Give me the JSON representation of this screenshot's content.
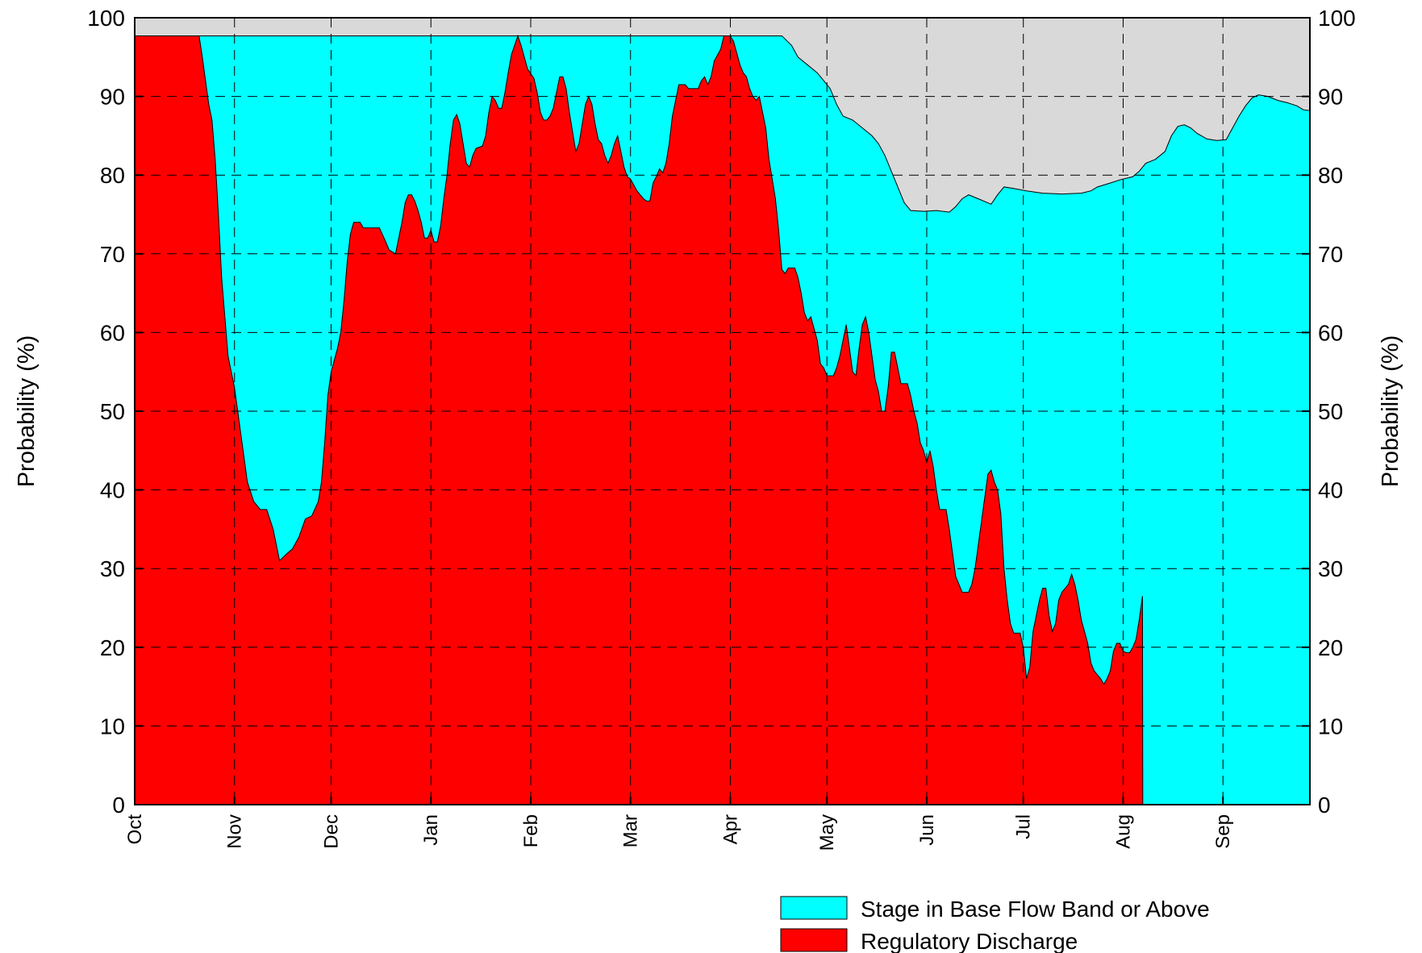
{
  "chart_data": {
    "type": "area",
    "title": "",
    "ylabel_left": "Probability (%)",
    "ylabel_right": "Probability (%)",
    "xlabel": "",
    "ylim": [
      0,
      100
    ],
    "yticks": [
      0,
      10,
      20,
      30,
      40,
      50,
      60,
      70,
      80,
      90,
      100
    ],
    "xlim": [
      0,
      365
    ],
    "months": [
      {
        "label": "Oct",
        "day": 0
      },
      {
        "label": "Nov",
        "day": 31
      },
      {
        "label": "Dec",
        "day": 61
      },
      {
        "label": "Jan",
        "day": 92
      },
      {
        "label": "Feb",
        "day": 123
      },
      {
        "label": "Mar",
        "day": 154
      },
      {
        "label": "Apr",
        "day": 185
      },
      {
        "label": "May",
        "day": 215
      },
      {
        "label": "Jun",
        "day": 246
      },
      {
        "label": "Jul",
        "day": 276
      },
      {
        "label": "Aug",
        "day": 307
      },
      {
        "label": "Sep",
        "day": 338
      }
    ],
    "grid": true,
    "legend_position": "bottom-right",
    "background_color": "#d9d9d9",
    "series": [
      {
        "name": "Stage in Base Flow Band or Above",
        "color": "#00ffff",
        "points": [
          [
            0,
            97.7
          ],
          [
            20,
            97.7
          ],
          [
            201,
            97.7
          ],
          [
            204,
            96.5
          ],
          [
            206,
            95
          ],
          [
            209,
            94
          ],
          [
            212,
            93
          ],
          [
            214,
            92
          ],
          [
            216,
            91
          ],
          [
            218,
            89
          ],
          [
            220,
            87.5
          ],
          [
            223,
            87
          ],
          [
            226,
            86
          ],
          [
            229,
            85
          ],
          [
            231,
            84
          ],
          [
            233,
            82.5
          ],
          [
            235,
            80.5
          ],
          [
            237,
            78.5
          ],
          [
            239,
            76.5
          ],
          [
            241,
            75.5
          ],
          [
            245,
            75.4
          ],
          [
            249,
            75.5
          ],
          [
            253,
            75.3
          ],
          [
            255,
            76
          ],
          [
            257,
            77
          ],
          [
            259,
            77.5
          ],
          [
            262,
            77
          ],
          [
            266,
            76.3
          ],
          [
            268,
            77.5
          ],
          [
            270,
            78.5
          ],
          [
            273,
            78.3
          ],
          [
            277,
            78
          ],
          [
            282,
            77.7
          ],
          [
            288,
            77.6
          ],
          [
            294,
            77.7
          ],
          [
            297,
            78
          ],
          [
            299,
            78.5
          ],
          [
            303,
            79
          ],
          [
            306,
            79.4
          ],
          [
            310,
            79.8
          ],
          [
            312,
            80.5
          ],
          [
            314,
            81.5
          ],
          [
            317,
            82
          ],
          [
            320,
            83
          ],
          [
            322,
            85
          ],
          [
            324,
            86.2
          ],
          [
            326,
            86.4
          ],
          [
            328,
            86
          ],
          [
            330,
            85.3
          ],
          [
            333,
            84.6
          ],
          [
            336,
            84.4
          ],
          [
            339,
            84.5
          ],
          [
            341,
            86
          ],
          [
            343,
            87.5
          ],
          [
            345,
            88.8
          ],
          [
            347,
            89.8
          ],
          [
            349,
            90.2
          ],
          [
            352,
            90
          ],
          [
            355,
            89.5
          ],
          [
            358,
            89.2
          ],
          [
            361,
            88.8
          ],
          [
            363,
            88.3
          ],
          [
            365,
            88.2
          ]
        ]
      },
      {
        "name": "Regulatory Discharge",
        "color": "#ff0000",
        "points": [
          [
            0,
            97.7
          ],
          [
            20,
            97.7
          ],
          [
            21,
            95
          ],
          [
            23,
            89
          ],
          [
            24,
            87
          ],
          [
            25,
            82
          ],
          [
            26,
            75
          ],
          [
            27,
            67
          ],
          [
            29,
            57
          ],
          [
            31,
            53
          ],
          [
            33,
            47
          ],
          [
            35,
            41
          ],
          [
            37,
            38.5
          ],
          [
            39,
            37.5
          ],
          [
            41,
            37.5
          ],
          [
            43,
            35
          ],
          [
            45,
            31
          ],
          [
            47,
            31.8
          ],
          [
            49,
            32.5
          ],
          [
            51,
            34
          ],
          [
            53,
            36.3
          ],
          [
            55,
            36.7
          ],
          [
            57,
            38.5
          ],
          [
            58,
            41
          ],
          [
            59,
            46
          ],
          [
            60,
            52
          ],
          [
            61,
            55
          ],
          [
            63,
            58
          ],
          [
            64,
            60
          ],
          [
            65,
            64
          ],
          [
            66,
            69
          ],
          [
            67,
            72.5
          ],
          [
            68,
            74
          ],
          [
            70,
            74
          ],
          [
            71,
            73.3
          ],
          [
            76,
            73.3
          ],
          [
            78,
            71.5
          ],
          [
            79,
            70.5
          ],
          [
            81,
            70
          ],
          [
            82,
            72
          ],
          [
            83,
            74
          ],
          [
            84,
            76.5
          ],
          [
            85,
            77.5
          ],
          [
            86,
            77.5
          ],
          [
            87,
            76.7
          ],
          [
            88,
            75.5
          ],
          [
            89,
            74
          ],
          [
            90,
            72
          ],
          [
            91,
            72
          ],
          [
            92,
            73
          ],
          [
            93,
            71.5
          ],
          [
            94,
            71.5
          ],
          [
            95,
            73.5
          ],
          [
            96,
            77
          ],
          [
            97,
            80
          ],
          [
            98,
            84
          ],
          [
            99,
            87
          ],
          [
            100,
            87.7
          ],
          [
            101,
            86.5
          ],
          [
            102,
            84
          ],
          [
            103,
            81.5
          ],
          [
            104,
            81
          ],
          [
            105,
            82.5
          ],
          [
            106,
            83.4
          ],
          [
            108,
            83.7
          ],
          [
            109,
            85
          ],
          [
            110,
            88
          ],
          [
            111,
            90
          ],
          [
            112,
            89.5
          ],
          [
            113,
            88.5
          ],
          [
            114,
            88.5
          ],
          [
            115,
            90.5
          ],
          [
            116,
            93
          ],
          [
            117,
            95.3
          ],
          [
            118,
            96.5
          ],
          [
            119,
            97.7
          ],
          [
            120,
            96.5
          ],
          [
            121,
            95
          ],
          [
            122,
            93.5
          ],
          [
            124,
            92.3
          ],
          [
            125,
            90.5
          ],
          [
            126,
            88
          ],
          [
            127,
            87
          ],
          [
            128,
            87
          ],
          [
            129,
            87.5
          ],
          [
            130,
            88.5
          ],
          [
            131,
            90.5
          ],
          [
            132,
            92.5
          ],
          [
            133,
            92.5
          ],
          [
            134,
            91
          ],
          [
            135,
            88
          ],
          [
            136,
            85.5
          ],
          [
            137,
            83
          ],
          [
            138,
            84
          ],
          [
            139,
            86.5
          ],
          [
            140,
            89
          ],
          [
            141,
            90
          ],
          [
            142,
            89
          ],
          [
            143,
            86.5
          ],
          [
            144,
            84.5
          ],
          [
            145,
            84
          ],
          [
            146,
            82.5
          ],
          [
            147,
            81.5
          ],
          [
            148,
            82.5
          ],
          [
            149,
            84
          ],
          [
            150,
            85
          ],
          [
            151,
            83
          ],
          [
            152,
            81
          ],
          [
            153,
            79.8
          ],
          [
            154,
            79.5
          ],
          [
            156,
            78
          ],
          [
            158,
            77
          ],
          [
            159,
            76.7
          ],
          [
            160,
            76.7
          ],
          [
            161,
            79
          ],
          [
            162,
            79.8
          ],
          [
            163,
            80.8
          ],
          [
            164,
            80.3
          ],
          [
            165,
            81.5
          ],
          [
            166,
            84
          ],
          [
            167,
            87.5
          ],
          [
            168,
            89.5
          ],
          [
            169,
            91.5
          ],
          [
            171,
            91.5
          ],
          [
            172,
            91
          ],
          [
            175,
            91
          ],
          [
            176,
            92
          ],
          [
            177,
            92.5
          ],
          [
            178,
            91.5
          ],
          [
            179,
            92.5
          ],
          [
            180,
            94.5
          ],
          [
            182,
            96
          ],
          [
            183,
            97.7
          ],
          [
            185,
            97.7
          ],
          [
            186,
            97
          ],
          [
            187,
            95.5
          ],
          [
            188,
            94
          ],
          [
            189,
            93
          ],
          [
            190,
            92.5
          ],
          [
            191,
            91
          ],
          [
            192,
            90
          ],
          [
            193,
            89.5
          ],
          [
            194,
            90
          ],
          [
            195,
            88
          ],
          [
            196,
            86
          ],
          [
            197,
            82
          ],
          [
            198,
            79.5
          ],
          [
            199,
            77
          ],
          [
            200,
            73
          ],
          [
            201,
            68
          ],
          [
            202,
            67.5
          ],
          [
            203,
            68.2
          ],
          [
            205,
            68.2
          ],
          [
            206,
            67
          ],
          [
            207,
            65
          ],
          [
            208,
            62.5
          ],
          [
            209,
            61.5
          ],
          [
            210,
            62
          ],
          [
            211,
            60.5
          ],
          [
            212,
            59
          ],
          [
            213,
            56
          ],
          [
            214,
            55.5
          ],
          [
            215,
            54.5
          ],
          [
            217,
            54.5
          ],
          [
            218,
            55.5
          ],
          [
            219,
            57
          ],
          [
            220,
            59
          ],
          [
            221,
            61
          ],
          [
            222,
            58
          ],
          [
            223,
            55
          ],
          [
            224,
            54.5
          ],
          [
            225,
            58
          ],
          [
            226,
            61
          ],
          [
            227,
            62
          ],
          [
            228,
            60
          ],
          [
            229,
            57
          ],
          [
            230,
            54
          ],
          [
            231,
            52.5
          ],
          [
            232,
            50
          ],
          [
            233,
            50
          ],
          [
            234,
            53
          ],
          [
            235,
            57.5
          ],
          [
            236,
            57.5
          ],
          [
            237,
            55.5
          ],
          [
            238,
            53.5
          ],
          [
            240,
            53.5
          ],
          [
            241,
            52
          ],
          [
            242,
            50
          ],
          [
            243,
            48.5
          ],
          [
            244,
            46
          ],
          [
            245,
            45
          ],
          [
            246,
            43.5
          ],
          [
            247,
            45
          ],
          [
            248,
            43
          ],
          [
            249,
            40
          ],
          [
            250,
            37.5
          ],
          [
            252,
            37.5
          ],
          [
            253,
            35
          ],
          [
            254,
            32
          ],
          [
            255,
            29
          ],
          [
            256,
            28
          ],
          [
            257,
            27
          ],
          [
            259,
            27
          ],
          [
            260,
            28
          ],
          [
            261,
            30
          ],
          [
            262,
            33
          ],
          [
            263,
            36
          ],
          [
            264,
            39
          ],
          [
            265,
            42
          ],
          [
            266,
            42.5
          ],
          [
            267,
            41
          ],
          [
            268,
            40
          ],
          [
            269,
            37
          ],
          [
            270,
            30
          ],
          [
            271,
            26
          ],
          [
            272,
            23
          ],
          [
            273,
            21.8
          ],
          [
            275,
            21.8
          ],
          [
            276,
            20
          ],
          [
            277,
            16
          ],
          [
            278,
            17.5
          ],
          [
            279,
            22
          ],
          [
            280,
            24
          ],
          [
            281,
            26
          ],
          [
            282,
            27.5
          ],
          [
            283,
            27.5
          ],
          [
            284,
            24
          ],
          [
            285,
            22
          ],
          [
            286,
            23
          ],
          [
            287,
            26
          ],
          [
            288,
            27
          ],
          [
            289,
            27.5
          ],
          [
            290,
            28
          ],
          [
            291,
            29.3
          ],
          [
            292,
            28
          ],
          [
            293,
            26
          ],
          [
            294,
            23.5
          ],
          [
            295,
            22
          ],
          [
            296,
            20.5
          ],
          [
            297,
            18
          ],
          [
            298,
            17
          ],
          [
            299,
            16.5
          ],
          [
            300,
            16
          ],
          [
            301,
            15.3
          ],
          [
            302,
            16
          ],
          [
            303,
            17
          ],
          [
            304,
            19.5
          ],
          [
            305,
            20.5
          ],
          [
            306,
            20.5
          ],
          [
            307,
            19.5
          ],
          [
            308,
            19.3
          ],
          [
            309,
            19.3
          ],
          [
            310,
            20
          ],
          [
            311,
            21
          ],
          [
            312,
            23.5
          ],
          [
            313,
            26.5
          ],
          [
            313.1,
            0
          ]
        ]
      }
    ]
  }
}
